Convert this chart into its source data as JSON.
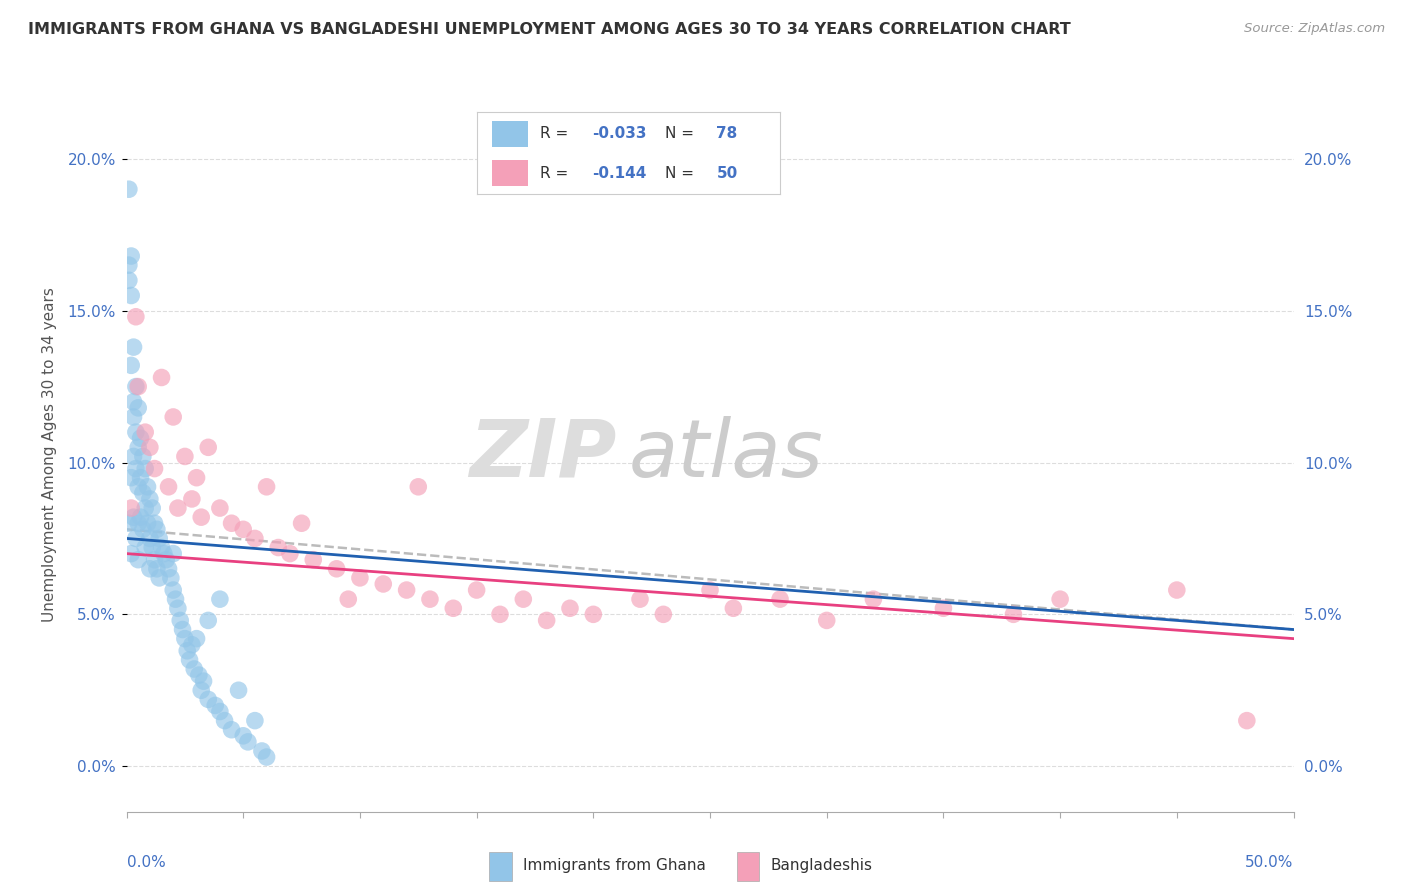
{
  "title": "IMMIGRANTS FROM GHANA VS BANGLADESHI UNEMPLOYMENT AMONG AGES 30 TO 34 YEARS CORRELATION CHART",
  "source": "Source: ZipAtlas.com",
  "ylabel": "Unemployment Among Ages 30 to 34 years",
  "ytick_vals": [
    0,
    5,
    10,
    15,
    20
  ],
  "xlim": [
    0,
    50
  ],
  "ylim": [
    -1.5,
    22
  ],
  "legend_R1": "-0.033",
  "legend_N1": "78",
  "legend_R2": "-0.144",
  "legend_N2": "50",
  "color_ghana": "#92C5E8",
  "color_bangladesh": "#F4A0B8",
  "color_line_ghana": "#2060B0",
  "color_line_bangladesh": "#E84080",
  "color_trend_dashed": "#BBBBBB",
  "watermark_zip": "ZIP",
  "watermark_atlas": "atlas",
  "ghana_x": [
    0.1,
    0.1,
    0.1,
    0.1,
    0.2,
    0.2,
    0.2,
    0.2,
    0.2,
    0.3,
    0.3,
    0.3,
    0.3,
    0.3,
    0.4,
    0.4,
    0.4,
    0.4,
    0.5,
    0.5,
    0.5,
    0.5,
    0.5,
    0.6,
    0.6,
    0.6,
    0.7,
    0.7,
    0.7,
    0.8,
    0.8,
    0.8,
    0.9,
    0.9,
    1.0,
    1.0,
    1.0,
    1.1,
    1.1,
    1.2,
    1.2,
    1.3,
    1.3,
    1.4,
    1.4,
    1.5,
    1.6,
    1.7,
    1.8,
    1.9,
    2.0,
    2.0,
    2.1,
    2.2,
    2.3,
    2.4,
    2.5,
    2.6,
    2.7,
    2.8,
    2.9,
    3.0,
    3.1,
    3.2,
    3.3,
    3.5,
    3.5,
    3.8,
    4.0,
    4.0,
    4.2,
    4.5,
    4.8,
    5.0,
    5.2,
    5.5,
    5.8,
    6.0
  ],
  "ghana_y": [
    19.0,
    16.5,
    16.0,
    8.0,
    16.8,
    15.5,
    13.2,
    9.5,
    7.0,
    13.8,
    12.0,
    11.5,
    10.2,
    8.2,
    12.5,
    11.0,
    9.8,
    7.5,
    11.8,
    10.5,
    9.2,
    8.0,
    6.8,
    10.8,
    9.5,
    8.2,
    10.2,
    9.0,
    7.8,
    9.8,
    8.5,
    7.2,
    9.2,
    8.0,
    8.8,
    7.5,
    6.5,
    8.5,
    7.2,
    8.0,
    6.8,
    7.8,
    6.5,
    7.5,
    6.2,
    7.2,
    7.0,
    6.8,
    6.5,
    6.2,
    5.8,
    7.0,
    5.5,
    5.2,
    4.8,
    4.5,
    4.2,
    3.8,
    3.5,
    4.0,
    3.2,
    4.2,
    3.0,
    2.5,
    2.8,
    2.2,
    4.8,
    2.0,
    1.8,
    5.5,
    1.5,
    1.2,
    2.5,
    1.0,
    0.8,
    1.5,
    0.5,
    0.3
  ],
  "bangladesh_x": [
    0.2,
    0.4,
    0.5,
    0.8,
    1.0,
    1.2,
    1.5,
    1.8,
    2.0,
    2.2,
    2.5,
    2.8,
    3.0,
    3.2,
    3.5,
    4.0,
    4.5,
    5.0,
    5.5,
    6.0,
    6.5,
    7.0,
    7.5,
    8.0,
    9.0,
    9.5,
    10.0,
    11.0,
    12.0,
    12.5,
    13.0,
    14.0,
    15.0,
    16.0,
    17.0,
    18.0,
    19.0,
    20.0,
    22.0,
    23.0,
    25.0,
    26.0,
    28.0,
    30.0,
    32.0,
    35.0,
    38.0,
    40.0,
    45.0,
    48.0
  ],
  "bangladesh_y": [
    8.5,
    14.8,
    12.5,
    11.0,
    10.5,
    9.8,
    12.8,
    9.2,
    11.5,
    8.5,
    10.2,
    8.8,
    9.5,
    8.2,
    10.5,
    8.5,
    8.0,
    7.8,
    7.5,
    9.2,
    7.2,
    7.0,
    8.0,
    6.8,
    6.5,
    5.5,
    6.2,
    6.0,
    5.8,
    9.2,
    5.5,
    5.2,
    5.8,
    5.0,
    5.5,
    4.8,
    5.2,
    5.0,
    5.5,
    5.0,
    5.8,
    5.2,
    5.5,
    4.8,
    5.5,
    5.2,
    5.0,
    5.5,
    5.8,
    1.5
  ],
  "line_ghana_x0": 0,
  "line_ghana_y0": 7.5,
  "line_ghana_x1": 50,
  "line_ghana_y1": 4.5,
  "line_bangladesh_x0": 0,
  "line_bangladesh_y0": 7.0,
  "line_bangladesh_x1": 50,
  "line_bangladesh_y1": 4.2,
  "line_dashed_x0": 0,
  "line_dashed_y0": 7.8,
  "line_dashed_x1": 50,
  "line_dashed_y1": 4.5
}
